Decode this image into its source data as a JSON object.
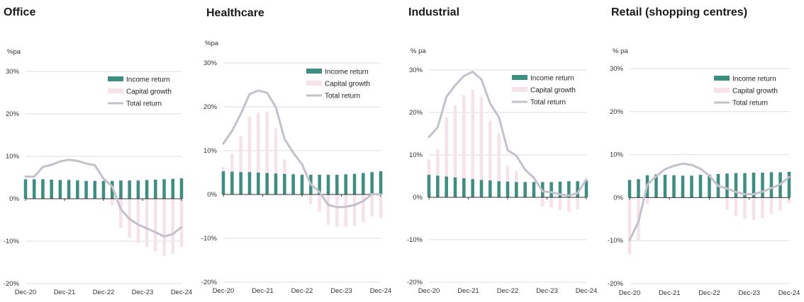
{
  "colors": {
    "income": "#3c8e80",
    "capital": "#f6e2e9",
    "total": "#c3c1cb",
    "grid": "#dddddd",
    "axis": "#333333"
  },
  "chart_data": [
    {
      "type": "bar",
      "title": "Office",
      "ylabel": "%pa",
      "ylim": [
        -20,
        30
      ],
      "yticks": [
        "30%",
        "20%",
        "10%",
        "0%",
        "-10%",
        "-20%"
      ],
      "xticks": [
        "Dec-20",
        "Dec-21",
        "Dec-22",
        "Dec-23",
        "Dec-24"
      ],
      "legend": [
        "Income return",
        "Capital growth",
        "Total return"
      ],
      "legend_position": "top-right",
      "series": [
        {
          "name": "Income return",
          "values": [
            4.6,
            4.6,
            4.6,
            4.5,
            4.4,
            4.4,
            4.3,
            4.2,
            4.2,
            4.2,
            4.2,
            4.3,
            4.3,
            4.3,
            4.4,
            4.5,
            4.6,
            4.7,
            4.8
          ]
        },
        {
          "name": "Capital growth",
          "values": [
            0.5,
            0.6,
            2.9,
            3.5,
            4.5,
            4.8,
            4.6,
            4.1,
            3.7,
            0.5,
            -1.5,
            -6.9,
            -9.2,
            -10.4,
            -11.4,
            -12.4,
            -13.5,
            -13.0,
            -11.4
          ]
        },
        {
          "name": "Total return",
          "values": [
            5.2,
            5.2,
            7.5,
            8.0,
            8.8,
            9.2,
            8.9,
            8.3,
            7.9,
            4.7,
            2.9,
            -2.5,
            -4.8,
            -6.1,
            -7.0,
            -7.9,
            -8.9,
            -8.3,
            -6.7
          ]
        }
      ]
    },
    {
      "type": "bar",
      "title": "Healthcare",
      "ylabel": "%pa",
      "ylim": [
        -20,
        30
      ],
      "yticks": [
        "30%",
        "20%",
        "10%",
        "0%",
        "-10%",
        "-20%"
      ],
      "xticks": [
        "Dec-20",
        "Dec-21",
        "Dec-22",
        "Dec-23",
        "Dec-24"
      ],
      "legend": [
        "Income return",
        "Capital growth",
        "Total return"
      ],
      "legend_position": "top-right",
      "series": [
        {
          "name": "Income return",
          "values": [
            5.3,
            5.2,
            5.1,
            5.1,
            5.0,
            4.9,
            4.8,
            4.7,
            4.6,
            4.5,
            4.5,
            4.5,
            4.5,
            4.5,
            4.6,
            4.7,
            4.9,
            5.1,
            5.3
          ]
        },
        {
          "name": "Capital growth",
          "values": [
            6.3,
            9.3,
            13.3,
            17.8,
            18.7,
            18.9,
            15.1,
            8.0,
            4.9,
            2.4,
            -2.2,
            -3.9,
            -6.9,
            -7.4,
            -7.4,
            -7.1,
            -6.4,
            -5.0,
            -5.3
          ]
        },
        {
          "name": "Total return",
          "values": [
            11.6,
            14.5,
            18.4,
            22.9,
            23.7,
            23.2,
            19.9,
            12.7,
            9.5,
            6.9,
            2.3,
            0.6,
            -2.4,
            -2.9,
            -2.8,
            -2.4,
            -1.5,
            0.1,
            0.0
          ]
        }
      ]
    },
    {
      "type": "bar",
      "title": "Industrial",
      "ylabel": "% pa",
      "ylim": [
        -20,
        30
      ],
      "yticks": [
        "30%",
        "20%",
        "10%",
        "0%",
        "-10%",
        "-20%"
      ],
      "xticks": [
        "Dec-20",
        "Dec-21",
        "Dec-22",
        "Dec-23",
        "Dec-24"
      ],
      "legend": [
        "Income return",
        "Capital growth",
        "Total return"
      ],
      "legend_position": "top-right",
      "series": [
        {
          "name": "Income return",
          "values": [
            5.3,
            5.1,
            4.9,
            4.7,
            4.5,
            4.3,
            4.1,
            4.0,
            3.8,
            3.7,
            3.6,
            3.6,
            3.6,
            3.6,
            3.6,
            3.7,
            3.8,
            3.8,
            3.9
          ]
        },
        {
          "name": "Capital growth",
          "values": [
            8.9,
            11.4,
            18.8,
            21.7,
            24.1,
            25.3,
            23.7,
            18.1,
            15.1,
            7.4,
            6.2,
            2.9,
            1.0,
            -2.2,
            -2.4,
            -3.0,
            -3.4,
            -2.8,
            0.3
          ]
        },
        {
          "name": "Total return",
          "values": [
            14.2,
            16.5,
            23.7,
            26.4,
            28.6,
            29.6,
            27.8,
            22.1,
            18.9,
            11.1,
            9.8,
            6.5,
            4.6,
            1.4,
            1.2,
            0.7,
            0.4,
            1.0,
            4.2
          ]
        }
      ]
    },
    {
      "type": "bar",
      "title": "Retail (shopping centres)",
      "ylabel": "% pa",
      "ylim": [
        -20,
        30
      ],
      "yticks": [
        "30%",
        "20%",
        "10%",
        "0%",
        "-10%",
        "-20%"
      ],
      "xticks": [
        "Dec-20",
        "Dec-21",
        "Dec-22",
        "Dec-23",
        "Dec-24"
      ],
      "legend": [
        "Income return",
        "Capital growth",
        "Total return"
      ],
      "legend_position": "top-right",
      "series": [
        {
          "name": "Income return",
          "values": [
            4.1,
            4.3,
            5.2,
            5.4,
            5.3,
            5.2,
            5.1,
            5.1,
            5.3,
            5.4,
            5.5,
            5.6,
            5.7,
            5.7,
            5.8,
            5.8,
            5.9,
            5.9,
            6.0
          ]
        },
        {
          "name": "Capital growth",
          "values": [
            -13.2,
            -9.8,
            -1.5,
            0.3,
            1.0,
            1.6,
            2.2,
            2.9,
            2.7,
            1.6,
            0.4,
            -2.8,
            -4.3,
            -4.9,
            -5.2,
            -4.8,
            -3.8,
            -3.1,
            -1.3
          ]
        },
        {
          "name": "Total return",
          "values": [
            -9.9,
            -5.6,
            3.0,
            5.0,
            6.6,
            7.4,
            7.9,
            7.6,
            6.7,
            5.1,
            2.7,
            2.1,
            1.3,
            0.8,
            0.8,
            1.4,
            2.2,
            3.1,
            4.8
          ]
        }
      ]
    }
  ]
}
